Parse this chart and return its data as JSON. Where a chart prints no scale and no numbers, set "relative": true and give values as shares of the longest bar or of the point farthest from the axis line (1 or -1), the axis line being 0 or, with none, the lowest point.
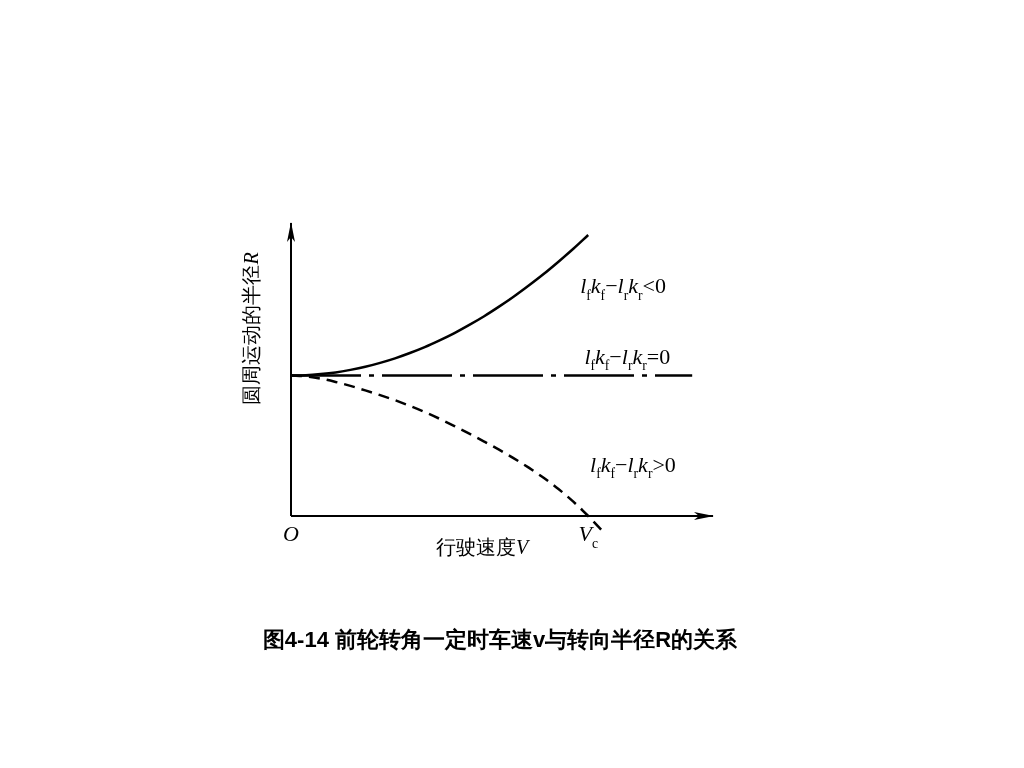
{
  "chart_data": {
    "type": "line",
    "title": "图4-14 前轮转角一定时车速v与转向半径R的关系",
    "xlabel": "行驶速度V",
    "ylabel": "圆周运动的半径R",
    "relative": true,
    "categories": [
      "O",
      null,
      null,
      null,
      null,
      null,
      null,
      null,
      null,
      null,
      null,
      null,
      null,
      null,
      null,
      null,
      null,
      null,
      null,
      null,
      "V$_{c}$",
      null,
      null,
      null,
      null,
      null,
      null,
      null,
      null
    ],
    "series": [
      {
        "name": "l$_{f}$k$_{f}$−l$_{r}$k$_{r}$<0",
        "color": "#000000",
        "line_style": "solid",
        "values": [
          0.5,
          0.501,
          0.505,
          0.511,
          0.52,
          0.531,
          0.545,
          0.561,
          0.58,
          0.601,
          0.625,
          0.651,
          0.68,
          0.711,
          0.745,
          0.781,
          0.82,
          0.861,
          0.905,
          0.951,
          1,
          null,
          null,
          null,
          null,
          null,
          null,
          null,
          null
        ]
      },
      {
        "name": "l$_{f}$k$_{f}$−l$_{r}$k$_{r}$=0",
        "color": "#000000",
        "line_style": "dashdot",
        "values": [
          0.5,
          0.5,
          0.5,
          0.5,
          0.5,
          0.5,
          0.5,
          0.5,
          0.5,
          0.5,
          0.5,
          0.5,
          0.5,
          0.5,
          0.5,
          0.5,
          0.5,
          0.5,
          0.5,
          0.5,
          0.5,
          0.5,
          0.5,
          0.5,
          0.5,
          0.5,
          0.5,
          0.5,
          null
        ]
      },
      {
        "name": "l$_{f}$k$_{f}$−l$_{r}$k$_{r}$>0",
        "color": "#000000",
        "line_style": "dashed",
        "values": [
          0.5,
          0.497,
          0.489,
          0.477,
          0.463,
          0.447,
          0.43,
          0.412,
          0.392,
          0.37,
          0.346,
          0.32,
          0.293,
          0.265,
          0.236,
          0.205,
          0.172,
          0.136,
          0.096,
          0.051,
          0,
          -0.056,
          null,
          null,
          null,
          null,
          null,
          null,
          null
        ]
      }
    ]
  }
}
